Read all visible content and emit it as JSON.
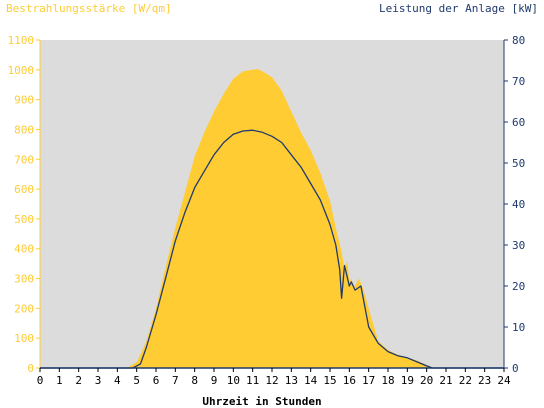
{
  "chart_data": {
    "type": "area",
    "left_axis_title": "Bestrahlungsstärke [W/qm]",
    "right_axis_title": "Leistung der Anlage [kW]",
    "xlabel": "Uhrzeit in Stunden",
    "xlim": [
      0,
      24
    ],
    "ylim_left": [
      0,
      1100
    ],
    "ylim_right": [
      0,
      80
    ],
    "x_ticks": [
      "0",
      "1",
      "2",
      "3",
      "4",
      "5",
      "6",
      "7",
      "8",
      "9",
      "10",
      "11",
      "12",
      "13",
      "14",
      "15",
      "16",
      "17",
      "18",
      "19",
      "20",
      "21",
      "22",
      "23",
      "24"
    ],
    "y_ticks_left": [
      "0",
      "100",
      "200",
      "300",
      "400",
      "500",
      "600",
      "700",
      "800",
      "900",
      "1000",
      "1100"
    ],
    "y_ticks_right": [
      "0",
      "10",
      "20",
      "30",
      "40",
      "50",
      "60",
      "70",
      "80"
    ],
    "grid": false,
    "background": "#dcdcdc",
    "irradiance_color": "#ffcc33",
    "power_color": "#1f3a6e",
    "series": [
      {
        "name": "Bestrahlungsstärke [W/qm]",
        "axis": "left",
        "style": "area",
        "x": [
          0,
          4.5,
          5,
          5.2,
          5.5,
          6,
          6.5,
          7,
          7.5,
          8,
          8.5,
          9,
          9.5,
          10,
          10.5,
          11,
          11.25,
          11.5,
          12,
          12.5,
          13,
          13.5,
          14,
          14.5,
          15,
          15.3,
          15.6,
          15.75,
          15.9,
          16,
          16.1,
          16.25,
          16.5,
          16.75,
          17,
          17.5,
          18,
          18.5,
          19,
          19.5,
          20,
          20.3,
          24
        ],
        "y": [
          0,
          0,
          20,
          45,
          90,
          200,
          340,
          470,
          590,
          710,
          790,
          860,
          920,
          970,
          995,
          1000,
          1003,
          995,
          975,
          930,
          860,
          790,
          730,
          655,
          560,
          470,
          390,
          330,
          360,
          290,
          300,
          270,
          300,
          260,
          200,
          90,
          60,
          45,
          35,
          25,
          10,
          0,
          0
        ]
      },
      {
        "name": "Leistung der Anlage [kW]",
        "axis": "right",
        "style": "line",
        "x": [
          0,
          4.8,
          5.2,
          5.5,
          6,
          6.5,
          7,
          7.5,
          8,
          8.5,
          9,
          9.5,
          10,
          10.5,
          11,
          11.5,
          12,
          12.5,
          13,
          13.5,
          14,
          14.5,
          15,
          15.3,
          15.5,
          15.6,
          15.75,
          15.9,
          16,
          16.1,
          16.3,
          16.6,
          16.8,
          17,
          17.5,
          18,
          18.5,
          19,
          19.5,
          20,
          20.3,
          24
        ],
        "y": [
          0,
          0,
          1,
          5,
          13,
          22,
          31,
          38,
          44,
          48,
          52,
          55,
          57,
          57.8,
          58,
          57.5,
          56.5,
          55,
          52,
          49,
          45,
          41,
          35,
          30,
          24,
          17,
          25,
          22,
          20,
          21,
          19,
          20,
          15,
          10,
          6,
          4,
          3,
          2.5,
          1.5,
          0.5,
          0,
          0
        ]
      }
    ]
  }
}
